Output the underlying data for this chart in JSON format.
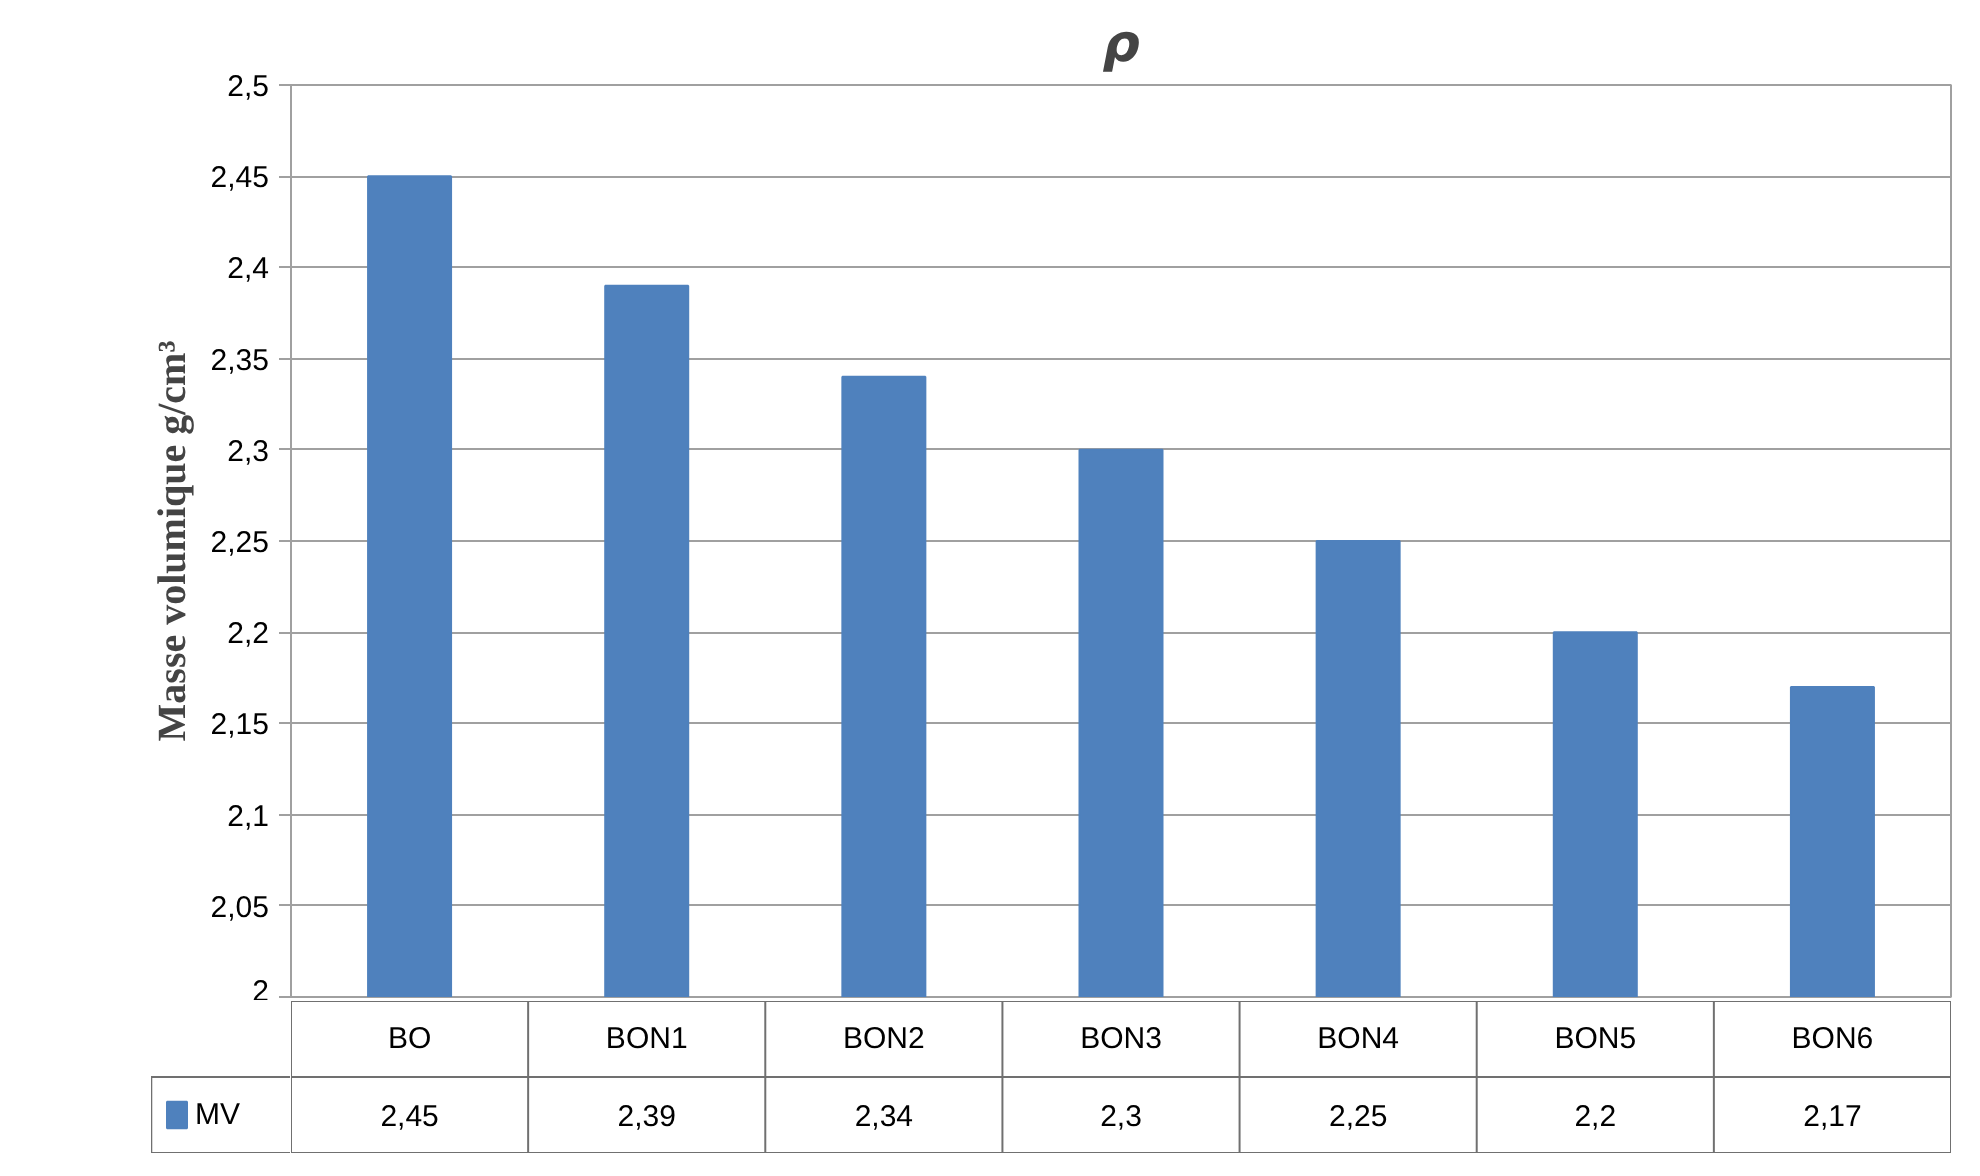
{
  "chart_data": {
    "type": "bar",
    "title": "ρ",
    "ylabel": "Masse volumique g/cm³",
    "categories": [
      "BO",
      "BON1",
      "BON2",
      "BON3",
      "BON4",
      "BON5",
      "BON6"
    ],
    "series": [
      {
        "name": "MV",
        "color": "#4f81bd",
        "values": [
          2.45,
          2.39,
          2.34,
          2.3,
          2.25,
          2.2,
          2.17
        ],
        "value_labels": [
          "2,45",
          "2,39",
          "2,34",
          "2,3",
          "2,25",
          "2,2",
          "2,17"
        ]
      }
    ],
    "ylim": [
      2,
      2.5
    ],
    "yticks": [
      2,
      {
        "value": 2.05,
        "label": "2,05"
      },
      {
        "value": 2.1,
        "label": "2,1"
      },
      {
        "value": 2.15,
        "label": "2,15"
      },
      {
        "value": 2.2,
        "label": "2,2"
      },
      {
        "value": 2.25,
        "label": "2,25"
      },
      {
        "value": 2.3,
        "label": "2,3"
      },
      {
        "value": 2.35,
        "label": "2,35"
      },
      {
        "value": 2.4,
        "label": "2,4"
      },
      {
        "value": 2.45,
        "label": "2,45"
      },
      {
        "value": 2.5,
        "label": "2,5"
      }
    ],
    "grid": "y",
    "legend": "bottom"
  }
}
